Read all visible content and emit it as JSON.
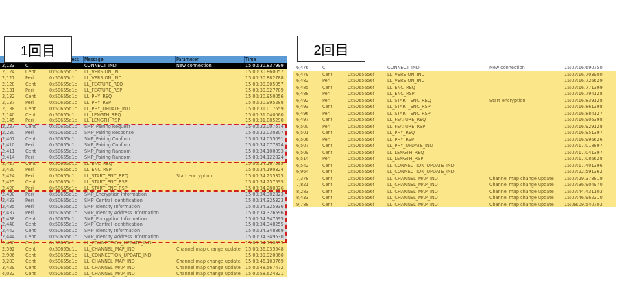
{
  "left": {
    "label": "1回目",
    "headers": {
      "address": "Address",
      "message": "Message",
      "parameter": "Parameter",
      "time": "Time"
    },
    "rows": [
      [
        "2,123",
        "C",
        "",
        "CONNECT_IND",
        "New connection",
        "15:00:30.837999",
        "sel"
      ],
      [
        "2,124",
        "Cent",
        "0x50655d1c",
        "LL_VERSION_IND",
        "",
        "15:00:30.860057",
        "y"
      ],
      [
        "2,127",
        "Peri",
        "0x50655d1c",
        "LL_VERSION_IND",
        "",
        "15:00:30.882788",
        "y"
      ],
      [
        "2,128",
        "Cent",
        "0x50655d1c",
        "LL_FEATURE_REQ",
        "",
        "15:00:30.905057",
        "y"
      ],
      [
        "2,131",
        "Peri",
        "0x50655d1c",
        "LL_FEATURE_RSP",
        "",
        "15:00:30.927789",
        "y"
      ],
      [
        "2,132",
        "Cent",
        "0x50655d1c",
        "LL_PHY_REQ",
        "",
        "15:00:30.950056",
        "y"
      ],
      [
        "2,137",
        "Peri",
        "0x50655d1c",
        "LL_PHY_RSP",
        "",
        "15:00:30.995288",
        "y"
      ],
      [
        "2,138",
        "Cent",
        "0x50655d1c",
        "LL_PHY_UPDATE_IND",
        "",
        "15:00:31.017559",
        "y"
      ],
      [
        "2,140",
        "Cent",
        "0x50655d1c",
        "LL_LENGTH_REQ",
        "",
        "15:00:31.040060",
        "y"
      ],
      [
        "2,145",
        "Peri",
        "0x50655d1c",
        "LL_LENGTH_RSP",
        "",
        "15:00:31.085290",
        "y"
      ],
      [
        "2,227",
        "Cent",
        "0x50655d1c",
        "SMP_Pairing Request",
        "",
        "15:00:32.007574",
        "g"
      ],
      [
        "2,230",
        "Peri",
        "0x50655d1c",
        "SMP_Pairing Response",
        "",
        "15:00:32.030307",
        "g"
      ],
      [
        "2,407",
        "Cent",
        "0x50655d1c",
        "SMP_Pairing Confirm",
        "",
        "15:00:34.055091",
        "g"
      ],
      [
        "2,410",
        "Peri",
        "0x50655d1c",
        "SMP_Pairing Confirm",
        "",
        "15:00:34.077824",
        "g"
      ],
      [
        "2,411",
        "Cent",
        "0x50655d1c",
        "SMP_Pairing Random",
        "",
        "15:00:34.100093",
        "g"
      ],
      [
        "2,414",
        "Peri",
        "0x50655d1c",
        "SMP_Pairing Random",
        "",
        "15:00:34.122824",
        "g"
      ],
      [
        "2,417",
        "Cent",
        "0x50655d1c",
        "LL_ENC_REQ",
        "",
        "15:00:34.167595",
        "y"
      ],
      [
        "2,420",
        "Peri",
        "0x50655d1c",
        "LL_ENC_RSP",
        "",
        "15:00:34.190324",
        "y"
      ],
      [
        "2,424",
        "Peri",
        "0x50655d1c",
        "LL_START_ENC_REQ",
        "Start encryption",
        "15:00:34.235325",
        "y"
      ],
      [
        "2,425",
        "Cent",
        "0x50655d1c",
        "LL_START_ENC_RSP",
        "",
        "15:00:34.257595",
        "y"
      ],
      [
        "2,428",
        "Peri",
        "0x50655d1c",
        "LL_START_ENC_RSP",
        "",
        "15:00:34.280326",
        "y"
      ],
      [
        "2,430",
        "Peri",
        "0x50655d1c",
        "SMP_Encryption Information",
        "",
        "15:00:34.302823",
        "g"
      ],
      [
        "2,433",
        "Peri",
        "0x50655d1c",
        "SMP_Central Identification",
        "",
        "15:00:34.325323",
        "g"
      ],
      [
        "2,435",
        "Peri",
        "0x50655d1c",
        "SMP_Identity Information",
        "",
        "15:00:34.325936",
        "g"
      ],
      [
        "2,437",
        "Peri",
        "0x50655d1c",
        "SMP_Identity Address Information",
        "",
        "15:00:34.326596",
        "g"
      ],
      [
        "2,438",
        "Cent",
        "0x50655d1c",
        "SMP_Encryption Information",
        "",
        "15:00:34.347595",
        "g"
      ],
      [
        "2,440",
        "Cent",
        "0x50655d1c",
        "SMP_Central Identification",
        "",
        "15:00:34.348255",
        "g"
      ],
      [
        "2,442",
        "Cent",
        "0x50655d1c",
        "SMP_Identity Information",
        "",
        "15:00:34.348869",
        "g"
      ],
      [
        "2,444",
        "Cent",
        "0x50655d1c",
        "SMP_Identity Address Information",
        "",
        "15:00:34.349530",
        "g"
      ],
      [
        "2,480",
        "Cent",
        "0x50655d1c",
        "LL_CONNECTION_UPDATE_IND",
        "",
        "15:00:34.730095",
        "y"
      ],
      [
        "2,592",
        "Cent",
        "0x50655d1c",
        "LL_CHANNEL_MAP_IND",
        "Channel map change update",
        "15:00:36.035548",
        "y"
      ],
      [
        "2,906",
        "Cent",
        "0x50655d1c",
        "LL_CONNECTION_UPDATE_IND",
        "",
        "15:00:39.920060",
        "y"
      ],
      [
        "3,283",
        "Cent",
        "0x50655d1c",
        "LL_CHANNEL_MAP_IND",
        "Channel map change update",
        "15:00:46.103769",
        "y"
      ],
      [
        "3,429",
        "Cent",
        "0x50655d1c",
        "LL_CHANNEL_MAP_IND",
        "Channel map change update",
        "15:00:48.567472",
        "y"
      ],
      [
        "4,022",
        "Cent",
        "0x50655d1c",
        "LL_CHANNEL_MAP_IND",
        "Channel map change update",
        "15:00:58.624821",
        "y"
      ]
    ]
  },
  "right": {
    "label": "2回目",
    "rows": [
      [
        "6,476",
        "C",
        "",
        "CONNECT_IND",
        "New connection",
        "15:07:16.690750",
        "w"
      ],
      [
        "6,479",
        "Cent",
        "0x5065656f",
        "LL_VERSION_IND",
        "",
        "15:07:16.703900",
        "y"
      ],
      [
        "6,482",
        "Peri",
        "0x5065656f",
        "LL_VERSION_IND",
        "",
        "15:07:16.726629",
        "y"
      ],
      [
        "6,485",
        "Cent",
        "0x5065656f",
        "LL_ENC_REQ",
        "",
        "15:07:16.771399",
        "y"
      ],
      [
        "6,488",
        "Peri",
        "0x5065656f",
        "LL_ENC_RSP",
        "",
        "15:07:16.794128",
        "y"
      ],
      [
        "6,492",
        "Peri",
        "0x5065656f",
        "LL_START_ENC_REQ",
        "Start encryption",
        "15:07:16.839128",
        "y"
      ],
      [
        "6,493",
        "Cent",
        "0x5065656f",
        "LL_START_ENC_RSP",
        "",
        "15:07:16.861398",
        "y"
      ],
      [
        "6,496",
        "Peri",
        "0x5065656f",
        "LL_START_ENC_RSP",
        "",
        "15:07:16.884127",
        "y"
      ],
      [
        "6,497",
        "Cent",
        "0x5065656f",
        "LL_FEATURE_REQ",
        "",
        "15:07:16.906398",
        "y"
      ],
      [
        "6,500",
        "Peri",
        "0x5065656f",
        "LL_FEATURE_RSP",
        "",
        "15:07:16.929128",
        "y"
      ],
      [
        "6,501",
        "Cent",
        "0x5065656f",
        "LL_PHY_REQ",
        "",
        "15:07:16.951397",
        "y"
      ],
      [
        "6,506",
        "Peri",
        "0x5065656f",
        "LL_PHY_RSP",
        "",
        "15:07:16.996626",
        "y"
      ],
      [
        "6,507",
        "Cent",
        "0x5065656f",
        "LL_PHY_UPDATE_IND",
        "",
        "15:07:17.018897",
        "y"
      ],
      [
        "6,509",
        "Cent",
        "0x5065656f",
        "LL_LENGTH_REQ",
        "",
        "15:07:17.041397",
        "y"
      ],
      [
        "6,514",
        "Peri",
        "0x5065656f",
        "LL_LENGTH_RSP",
        "",
        "15:07:17.086628",
        "y"
      ],
      [
        "6,542",
        "Cent",
        "0x5065656f",
        "LL_CONNECTION_UPDATE_IND",
        "",
        "15:07:17.401396",
        "y"
      ],
      [
        "6,964",
        "Cent",
        "0x5065656f",
        "LL_CONNECTION_UPDATE_IND",
        "",
        "15:07:22.591362",
        "y"
      ],
      [
        "7,378",
        "Cent",
        "0x5065656f",
        "LL_CHANNEL_MAP_IND",
        "Channel map change update",
        "15:07:29.378819",
        "y"
      ],
      [
        "7,821",
        "Cent",
        "0x5065656f",
        "LL_CHANNEL_MAP_IND",
        "Channel map change update",
        "15:07:36.904970",
        "y"
      ],
      [
        "8,283",
        "Cent",
        "0x5065656f",
        "LL_CHANNEL_MAP_IND",
        "Channel map change update",
        "15:07:44.431103",
        "y"
      ],
      [
        "8,433",
        "Cent",
        "0x5065656f",
        "LL_CHANNEL_MAP_IND",
        "Channel map change update",
        "15:07:46.962310",
        "y"
      ],
      [
        "9,788",
        "Cent",
        "0x5065656f",
        "LL_CHANNEL_MAP_IND",
        "Channel map change update",
        "15:08:09.540703",
        "y"
      ]
    ]
  }
}
